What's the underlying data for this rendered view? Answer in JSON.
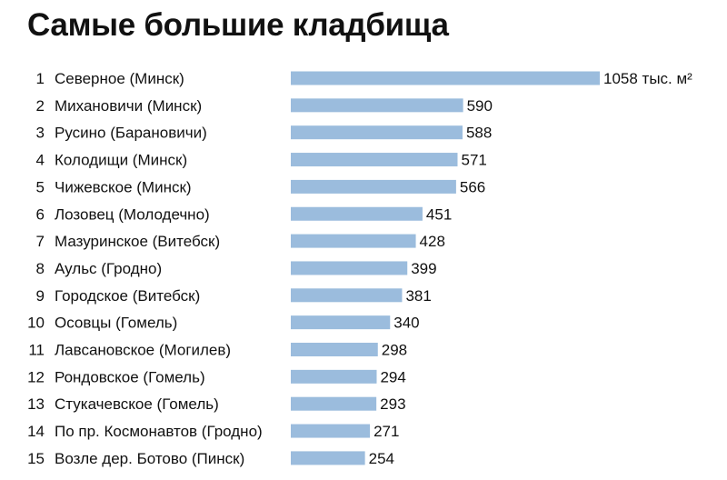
{
  "title": "Самые большие кладбища",
  "chart_data": {
    "type": "bar",
    "orientation": "horizontal",
    "title": "Самые большие кладбища",
    "unit": "тыс. м²",
    "ranks": [
      "1",
      "2",
      "3",
      "4",
      "5",
      "6",
      "7",
      "8",
      "9",
      "10",
      "11",
      "12",
      "13",
      "14",
      "15"
    ],
    "categories": [
      "Северное (Минск)",
      "Михановичи (Минск)",
      "Русино (Барановичи)",
      "Колодищи (Минск)",
      "Чижевское (Минск)",
      "Лозовец (Молодечно)",
      "Мазуринское (Витебск)",
      "Аульс (Гродно)",
      "Городское (Витебск)",
      "Осовцы (Гомель)",
      "Лавсановское (Могилев)",
      "Рондовское (Гомель)",
      "Стукачевское (Гомель)",
      "По пр. Космонавтов (Гродно)",
      "Возле дер. Ботово (Пинск)"
    ],
    "values": [
      1058,
      590,
      588,
      571,
      566,
      451,
      428,
      399,
      381,
      340,
      298,
      294,
      293,
      271,
      254
    ],
    "value_labels": [
      "1058 тыс. м²",
      "590",
      "588",
      "571",
      "566",
      "451",
      "428",
      "399",
      "381",
      "340",
      "298",
      "294",
      "293",
      "271",
      "254"
    ],
    "bar_color": "#9bbcdd",
    "xlim": [
      0,
      1058
    ],
    "grid": false,
    "legend": "none"
  }
}
